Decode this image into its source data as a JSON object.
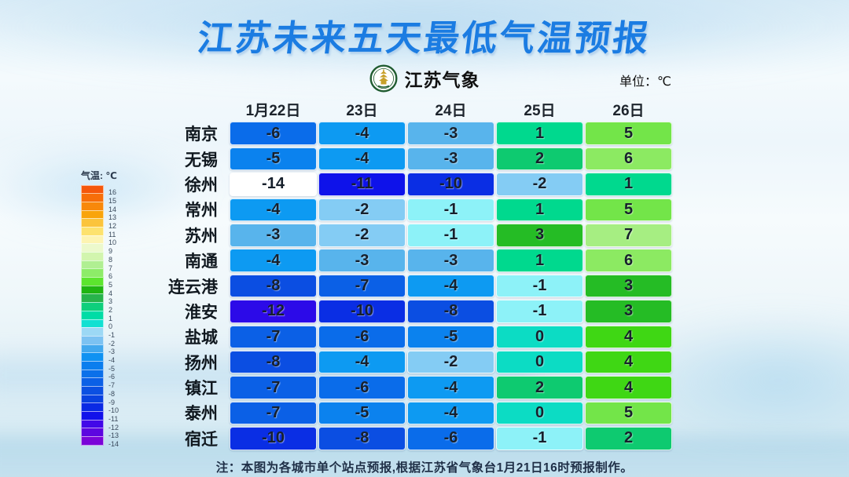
{
  "title": "江苏未来五天最低气温预报",
  "logo_text": "江苏气象",
  "unit_label": "单位：℃",
  "note": "注：本图为各城市单个站点预报,根据江苏省气象台1月21日16时预报制作。",
  "legend": {
    "title": "气温: ℃",
    "entries": [
      {
        "label": "16",
        "color": "#f5570b"
      },
      {
        "label": "15",
        "color": "#f76e09"
      },
      {
        "label": "14",
        "color": "#f8880a"
      },
      {
        "label": "13",
        "color": "#f9a40b"
      },
      {
        "label": "12",
        "color": "#fbc43c"
      },
      {
        "label": "11",
        "color": "#fde26e"
      },
      {
        "label": "10",
        "color": "#fdf4b2"
      },
      {
        "label": "9",
        "color": "#ecf9cc"
      },
      {
        "label": "8",
        "color": "#d2f5ae"
      },
      {
        "label": "7",
        "color": "#b0ef92"
      },
      {
        "label": "6",
        "color": "#8dec68"
      },
      {
        "label": "5",
        "color": "#5ce52e"
      },
      {
        "label": "4",
        "color": "#1fb511"
      },
      {
        "label": "3",
        "color": "#27b34b"
      },
      {
        "label": "2",
        "color": "#0ecf7c"
      },
      {
        "label": "1",
        "color": "#00dca6"
      },
      {
        "label": "0",
        "color": "#12e0d2"
      },
      {
        "label": "-1",
        "color": "#9cd8f5"
      },
      {
        "label": "-2",
        "color": "#7cc2f2"
      },
      {
        "label": "-3",
        "color": "#42a8ee"
      },
      {
        "label": "-4",
        "color": "#0f92f2"
      },
      {
        "label": "-5",
        "color": "#0b7eee"
      },
      {
        "label": "-6",
        "color": "#0b70ea"
      },
      {
        "label": "-7",
        "color": "#0b60e6"
      },
      {
        "label": "-8",
        "color": "#0b50e2"
      },
      {
        "label": "-9",
        "color": "#0942e0"
      },
      {
        "label": "-10",
        "color": "#0a2ae4"
      },
      {
        "label": "-11",
        "color": "#1212ea"
      },
      {
        "label": "-12",
        "color": "#4208e8"
      },
      {
        "label": "-13",
        "color": "#5c06e0"
      },
      {
        "label": "-14",
        "color": "#7a04d8"
      }
    ]
  },
  "chart_data": {
    "type": "heatmap",
    "title": "江苏未来五天最低气温预报",
    "unit": "℃",
    "columns": [
      "1月22日",
      "23日",
      "24日",
      "25日",
      "26日"
    ],
    "rows": [
      {
        "city": "南京",
        "values": [
          -6,
          -4,
          -3,
          1,
          5
        ]
      },
      {
        "city": "无锡",
        "values": [
          -5,
          -4,
          -3,
          2,
          6
        ]
      },
      {
        "city": "徐州",
        "values": [
          -14,
          -11,
          -10,
          -2,
          1
        ]
      },
      {
        "city": "常州",
        "values": [
          -4,
          -2,
          -1,
          1,
          5
        ]
      },
      {
        "city": "苏州",
        "values": [
          -3,
          -2,
          -1,
          3,
          7
        ]
      },
      {
        "city": "南通",
        "values": [
          -4,
          -3,
          -3,
          1,
          6
        ]
      },
      {
        "city": "连云港",
        "values": [
          -8,
          -7,
          -4,
          -1,
          3
        ]
      },
      {
        "city": "淮安",
        "values": [
          -12,
          -10,
          -8,
          -1,
          3
        ]
      },
      {
        "city": "盐城",
        "values": [
          -7,
          -6,
          -5,
          0,
          4
        ]
      },
      {
        "city": "扬州",
        "values": [
          -8,
          -4,
          -2,
          0,
          4
        ]
      },
      {
        "city": "镇江",
        "values": [
          -7,
          -6,
          -4,
          2,
          4
        ]
      },
      {
        "city": "泰州",
        "values": [
          -7,
          -5,
          -4,
          0,
          5
        ]
      },
      {
        "city": "宿迁",
        "values": [
          -10,
          -8,
          -6,
          -1,
          2
        ]
      }
    ],
    "colorbar": {
      "label": "气温: ℃",
      "min": -14,
      "max": 16
    }
  },
  "colors": {
    "title": "#1b7ce2",
    "cell_text": "#17202c",
    "value_colors": {
      "7": "#a6ee82",
      "6": "#8cea62",
      "5": "#73e549",
      "4": "#3fd714",
      "3": "#25bc25",
      "2": "#0eca70",
      "1": "#00d98e",
      "0": "#0cdcc4",
      "-1": "#8df2f8",
      "-2": "#84ccf4",
      "-3": "#58b4ec",
      "-4": "#0d9af2",
      "-5": "#0b82ee",
      "-6": "#0a6cea",
      "-7": "#0b60e6",
      "-8": "#0b4ee2",
      "-9": "#0942e0",
      "-10": "#0a2ee4",
      "-11": "#0e12ea",
      "-12": "#2c0ae8",
      "-13": "#5c06e0",
      "-14": "#ffffff"
    }
  }
}
